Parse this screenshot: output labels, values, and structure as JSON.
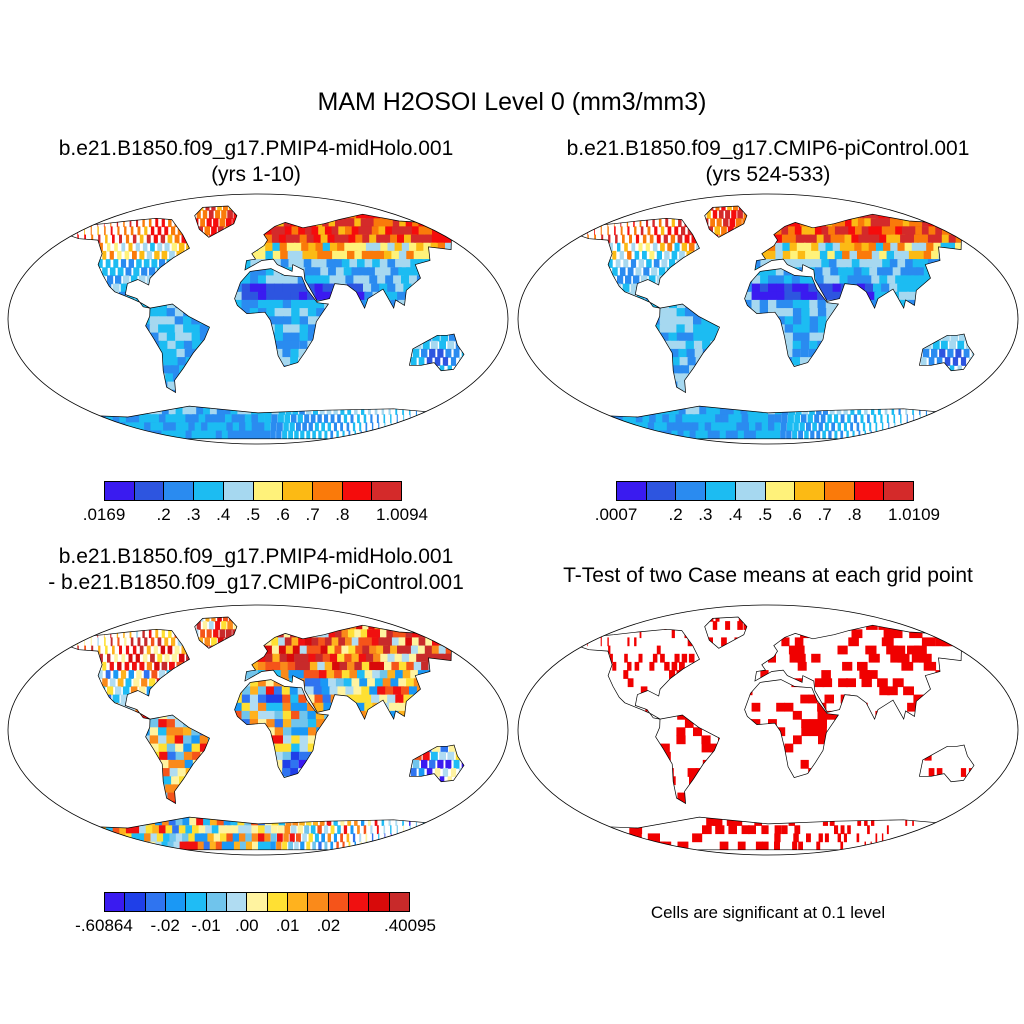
{
  "title": "MAM H2OSOI Level 0 (mm3/mm3)",
  "panels": [
    {
      "id": "case1",
      "title_line1": "b.e21.B1850.f09_g17.PMIP4-midHolo.001",
      "title_line2": "(yrs 1-10)"
    },
    {
      "id": "case2",
      "title_line1": "b.e21.B1850.f09_g17.CMIP6-piControl.001",
      "title_line2": "(yrs 524-533)"
    },
    {
      "id": "diff",
      "title_line1": "b.e21.B1850.f09_g17.PMIP4-midHolo.001",
      "title_line2": "- b.e21.B1850.f09_g17.CMIP6-piControl.001"
    },
    {
      "id": "ttest",
      "title_line1": "T-Test of two Case means at each grid point"
    }
  ],
  "colorbars": {
    "case1": {
      "colors": [
        "#3a1bf0",
        "#2d55e0",
        "#2a8bf0",
        "#1cbcf2",
        "#a6d8f0",
        "#fff27a",
        "#fcba14",
        "#fa7a0a",
        "#f50c0c",
        "#d42a2a"
      ],
      "labels": [
        ".0169",
        ".2",
        ".3",
        ".4",
        ".5",
        ".6",
        ".7",
        ".8",
        "1.0094"
      ]
    },
    "case2": {
      "colors": [
        "#3a1bf0",
        "#2d55e0",
        "#2a8bf0",
        "#1cbcf2",
        "#a6d8f0",
        "#fff27a",
        "#fcba14",
        "#fa7a0a",
        "#f50c0c",
        "#d42a2a"
      ],
      "labels": [
        ".0007",
        ".2",
        ".3",
        ".4",
        ".5",
        ".6",
        ".7",
        ".8",
        "1.0109"
      ]
    },
    "diff": {
      "colors": [
        "#3a1bf0",
        "#1f3fe8",
        "#2f74f0",
        "#1a98f5",
        "#1fbcf5",
        "#70c4ec",
        "#b0dcf2",
        "#fff3a0",
        "#ffe033",
        "#ffb21e",
        "#fa8a1a",
        "#f5541a",
        "#f01010",
        "#d80a0a",
        "#c82a2a"
      ],
      "labels": [
        "-.60864",
        "-.02",
        "-.01",
        ".00",
        ".01",
        ".02",
        ".40095"
      ]
    }
  },
  "ttest_note": "Cells are significant at 0.1 level"
}
